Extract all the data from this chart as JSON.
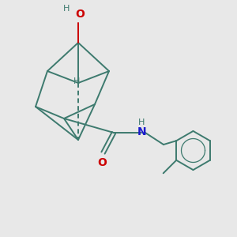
{
  "bg_color": "#e8e8e8",
  "bond_color": "#3d7a6e",
  "bond_width": 1.4,
  "o_color": "#cc0000",
  "n_color": "#1a1acc",
  "h_color": "#3d7a6e",
  "figsize": [
    3.0,
    3.0
  ],
  "dpi": 100,
  "xlim": [
    0,
    10
  ],
  "ylim": [
    0,
    10
  ]
}
